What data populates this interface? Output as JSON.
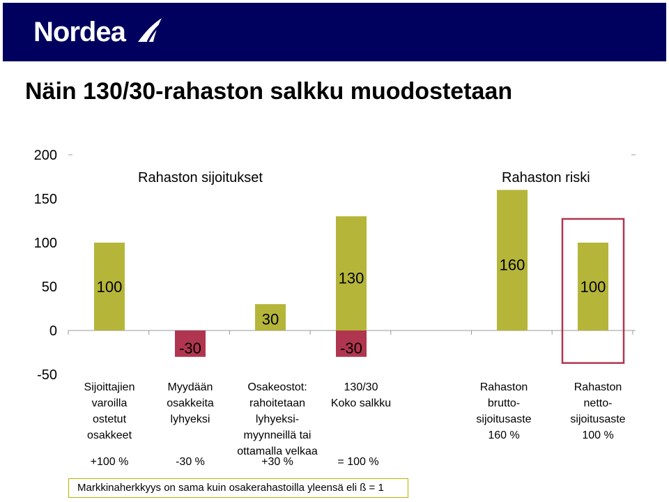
{
  "brand": {
    "logo_text": "Nordea",
    "color": "#00005e"
  },
  "title": "Näin 130/30-rahaston salkku muodostetaan",
  "sections": {
    "left": "Rahaston sijoitukset",
    "right": "Rahaston riski"
  },
  "categories": [
    {
      "label": "Sijoittajien\nvaroilla\nostetut\nosakkeet",
      "pct": "+100 %"
    },
    {
      "label": "Myydään\nosakkeita\nlyhyeksi",
      "pct": "-30 %"
    },
    {
      "label": "Osakeostot:\nrahoitetaan\nlyhyeksi-\nmyynneillä tai\nottamalla velkaa",
      "pct": "+30 %"
    },
    {
      "label": "130/30\nKoko salkku",
      "pct": "= 100 %"
    },
    {
      "label": "Rahaston\nbrutto-\nsijoitusaste\n160 %",
      "pct": ""
    },
    {
      "label": "Rahaston\nnetto-\nsijoitusaste\n100 %",
      "pct": ""
    }
  ],
  "footnote": "Markkinaherkkyys on sama kuin osakerahastoilla yleensä eli ß = 1",
  "chart_data": {
    "type": "bar",
    "y_ticks": [
      "200",
      "150",
      "100",
      "50",
      "0",
      "-50"
    ],
    "ylim": [
      -50,
      200
    ],
    "bars": [
      {
        "index": 0,
        "value": 100,
        "label": "100",
        "color": "#b5b53a"
      },
      {
        "index": 1,
        "value": -30,
        "label": "-30",
        "color": "#b0354f"
      },
      {
        "index": 2,
        "value": 30,
        "label": "30",
        "color": "#b5b53a"
      },
      {
        "index": 3,
        "value": 130,
        "label": "130",
        "color": "#b5b53a"
      },
      {
        "index": 3,
        "value": -30,
        "label": "-30",
        "color": "#b0354f"
      },
      {
        "index": 4,
        "value": 160,
        "label": "160",
        "color": "#b5b53a"
      },
      {
        "index": 5,
        "value": 100,
        "label": "100",
        "color": "#b5b53a"
      }
    ],
    "highlight_index": 5,
    "highlight_color": "#b0354f"
  }
}
